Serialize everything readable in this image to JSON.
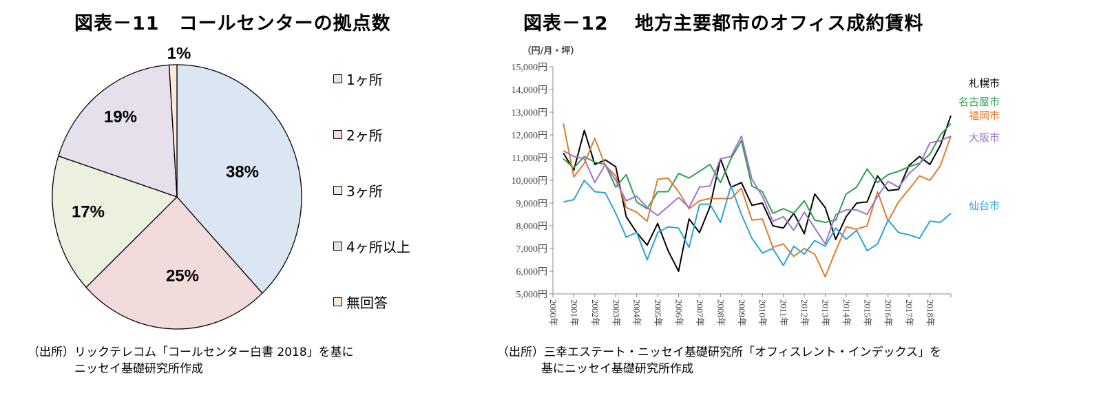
{
  "chart_data": [
    {
      "type": "pie",
      "title": "図表－11　コールセンターの拠点数",
      "labels": [
        "1ヶ所",
        "2ヶ所",
        "3ヶ所",
        "4ヶ所以上",
        "無回答"
      ],
      "values": [
        38,
        25,
        17,
        19,
        1
      ],
      "data_labels": [
        "38%",
        "25%",
        "17%",
        "19%",
        "1%"
      ],
      "colors": [
        "#dce6f2",
        "#f2dcdb",
        "#ebf1de",
        "#e6e0ec",
        "#fde9d9"
      ],
      "legend_position": "right",
      "source": [
        "（出所）リックテレコム「コールセンター白書 2018」を基に",
        "ニッセイ基礎研究所作成"
      ]
    },
    {
      "type": "line",
      "title": "図表－12　 地方主要都市のオフィス成約賃料",
      "ylabel": "（円/月・坪）",
      "ylim": [
        5000,
        15000
      ],
      "yticks": [
        5000,
        6000,
        7000,
        8000,
        9000,
        10000,
        11000,
        12000,
        13000,
        14000,
        15000
      ],
      "ytick_labels": [
        "5,000円",
        "6,000円",
        "7,000円",
        "8,000円",
        "9,000円",
        "10,000円",
        "11,000円",
        "12,000円",
        "13,000円",
        "14,000円",
        "15,000円"
      ],
      "xlim": [
        2000,
        2019
      ],
      "xtick_labels": [
        "2000年",
        "2001年",
        "2002年",
        "2003年",
        "2004年",
        "2005年",
        "2006年",
        "2007年",
        "2008年",
        "2009年",
        "2010年",
        "2011年",
        "2012年",
        "2013年",
        "2014年",
        "2015年",
        "2016年",
        "2017年",
        "2018年"
      ],
      "x_start": 2000.5,
      "x_step": 0.5,
      "grid": false,
      "series": [
        {
          "name": "札幌市",
          "color": "#000000",
          "values": [
            11200,
            10450,
            12200,
            10700,
            10900,
            10600,
            8400,
            7700,
            7150,
            8100,
            6900,
            6000,
            8300,
            7700,
            8850,
            10950,
            9700,
            9900,
            8900,
            9000,
            8000,
            7900,
            8550,
            7650,
            9400,
            8800,
            7400,
            8400,
            9000,
            9050,
            10200,
            9550,
            9600,
            10650,
            11050,
            10700,
            11550,
            12850
          ]
        },
        {
          "name": "名古屋市",
          "color": "#2e9e4f",
          "values": [
            10950,
            10550,
            11050,
            10800,
            10700,
            9700,
            10250,
            9050,
            8750,
            9500,
            9500,
            10300,
            10100,
            10400,
            10700,
            9900,
            10950,
            11750,
            9750,
            9500,
            8550,
            8750,
            8550,
            9100,
            8250,
            8150,
            8250,
            9400,
            9700,
            10500,
            9900,
            10250,
            10400,
            10600,
            10750,
            11150,
            12000,
            12500
          ]
        },
        {
          "name": "福岡市",
          "color": "#e07b2a",
          "values": [
            12500,
            10150,
            10750,
            11850,
            10650,
            10200,
            8800,
            8600,
            8200,
            10050,
            10100,
            9500,
            8750,
            9100,
            9200,
            9200,
            9200,
            9650,
            8250,
            8300,
            7050,
            7200,
            6650,
            7000,
            6750,
            5750,
            6900,
            7950,
            7850,
            8000,
            9500,
            8200,
            9050,
            9600,
            10200,
            10000,
            10650,
            11950
          ]
        },
        {
          "name": "大阪市",
          "color": "#a071cc",
          "values": [
            11300,
            11050,
            10950,
            9900,
            10700,
            10000,
            9100,
            9300,
            8800,
            8450,
            8850,
            9250,
            8800,
            9700,
            9750,
            10950,
            11050,
            11950,
            10050,
            9300,
            8200,
            8400,
            7800,
            8600,
            7900,
            7200,
            8500,
            8700,
            8700,
            8500,
            9300,
            9950,
            9700,
            10300,
            10700,
            11650,
            11750,
            11950
          ]
        },
        {
          "name": "仙台市",
          "color": "#29a3d6",
          "values": [
            9050,
            9150,
            10000,
            9500,
            9450,
            8550,
            7500,
            7700,
            6500,
            7700,
            7950,
            7900,
            7050,
            8950,
            8950,
            8150,
            9750,
            8500,
            7450,
            6800,
            7000,
            6250,
            7100,
            6750,
            7350,
            7100,
            7900,
            7400,
            7800,
            6900,
            7200,
            8250,
            7700,
            7600,
            7450,
            8200,
            8150,
            8550
          ]
        }
      ],
      "source": [
        "（出所）三幸エステート・ニッセイ基礎研究所「オフィスレント・インデックス」を",
        "基にニッセイ基礎研究所作成"
      ]
    }
  ]
}
